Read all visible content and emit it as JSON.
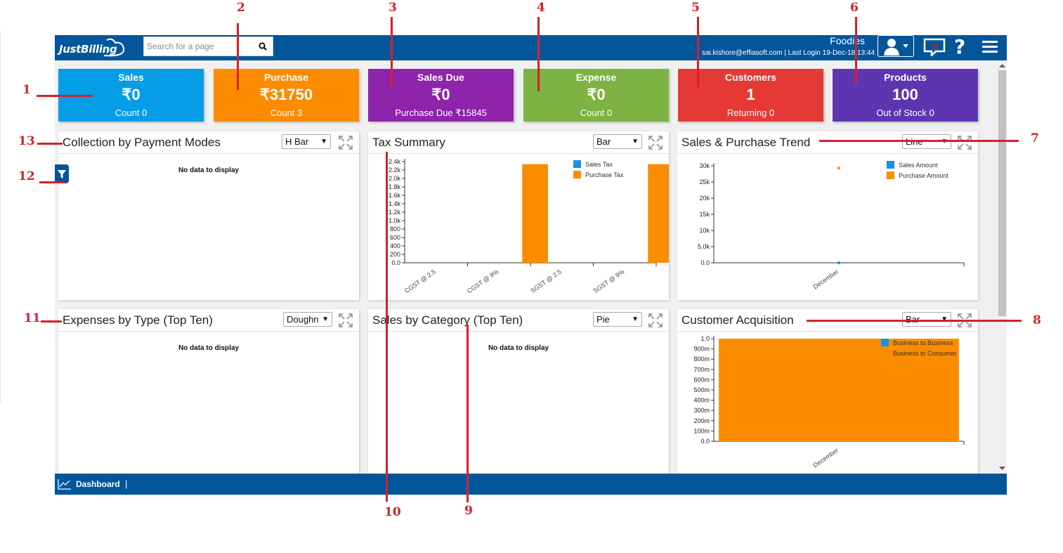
{
  "app": {
    "logo_text": "JustBilling",
    "search_placeholder": "Search for a page",
    "company": "Foodies",
    "user_line": "sai.kishore@effiasoft.com | Last Login 19-Dec-18 13:44",
    "notification_count": "0",
    "help_label": "?"
  },
  "stats": [
    {
      "title": "Sales",
      "value": "₹0",
      "sub": "Count 0",
      "color": "#049de6"
    },
    {
      "title": "Purchase",
      "value": "₹31750",
      "sub": "Count 3",
      "color": "#fb8c00"
    },
    {
      "title": "Sales Due",
      "value": "₹0",
      "sub": "Purchase Due ₹15845",
      "color": "#8e24aa"
    },
    {
      "title": "Expense",
      "value": "₹0",
      "sub": "Count 0",
      "color": "#7cb342"
    },
    {
      "title": "Customers",
      "value": "1",
      "sub": "Returning 0",
      "color": "#e53935"
    },
    {
      "title": "Products",
      "value": "100",
      "sub": "Out of Stock 0",
      "color": "#5e35b1"
    }
  ],
  "panels": {
    "collection": {
      "title": "Collection by Payment Modes",
      "select": "H Bar",
      "empty": "No data to display"
    },
    "tax": {
      "title": "Tax Summary",
      "select": "Bar"
    },
    "trend": {
      "title": "Sales & Purchase Trend",
      "select": "Line"
    },
    "expenses": {
      "title": "Expenses by Type (Top Ten)",
      "select": "Doughn",
      "empty": "No data to display"
    },
    "category": {
      "title": "Sales by Category (Top Ten)",
      "select": "Pie",
      "empty": "No data to display"
    },
    "acquisition": {
      "title": "Customer Acquisition",
      "select": "Bar"
    }
  },
  "footer": {
    "label": "Dashboard",
    "separator": "|"
  },
  "annotations": [
    "1",
    "2",
    "3",
    "4",
    "5",
    "6",
    "7",
    "8",
    "9",
    "10",
    "11",
    "12",
    "13"
  ],
  "chart_data": [
    {
      "type": "bar",
      "categories": [
        "CGST @ 2.5",
        "CGST @ 9%",
        "SGST @ 2.5",
        "SGST @ 9%"
      ],
      "series": [
        {
          "name": "Sales Tax",
          "values": [
            0,
            0,
            0,
            0
          ],
          "color": "#1a8ee5"
        },
        {
          "name": "Purchase Tax",
          "values": [
            0,
            2388,
            0,
            2388
          ],
          "color": "#fb8c00"
        }
      ],
      "yticks": [
        "0.0",
        "200",
        "400",
        "600",
        "800",
        "1.0k",
        "1.2k",
        "1.4k",
        "1.6k",
        "1.8k",
        "2.0k",
        "2.2k",
        "2.4k"
      ],
      "ylim": [
        0,
        2450
      ]
    },
    {
      "type": "line",
      "categories": [
        "December"
      ],
      "series": [
        {
          "name": "Sales Amount",
          "values": [
            0
          ],
          "color": "#1a8ee5"
        },
        {
          "name": "Purchase Amount",
          "values": [
            31750
          ],
          "color": "#fb8c00"
        }
      ],
      "yticks": [
        "0.0",
        "5.0k",
        "10k",
        "15k",
        "20k",
        "25k",
        "30k"
      ],
      "ylim": [
        0,
        32500
      ]
    },
    {
      "type": "bar",
      "categories": [
        "December"
      ],
      "series": [
        {
          "name": "Business to Business",
          "values": [
            0
          ],
          "color": "#1a8ee5"
        },
        {
          "name": "Business to Consumer",
          "values": [
            1.0
          ],
          "color": "#fb8c00"
        }
      ],
      "yticks": [
        "0.0",
        "100m",
        "200m",
        "300m",
        "400m",
        "500m",
        "600m",
        "700m",
        "800m",
        "900m",
        "1.0"
      ],
      "ylim": [
        0,
        1.0
      ]
    }
  ]
}
